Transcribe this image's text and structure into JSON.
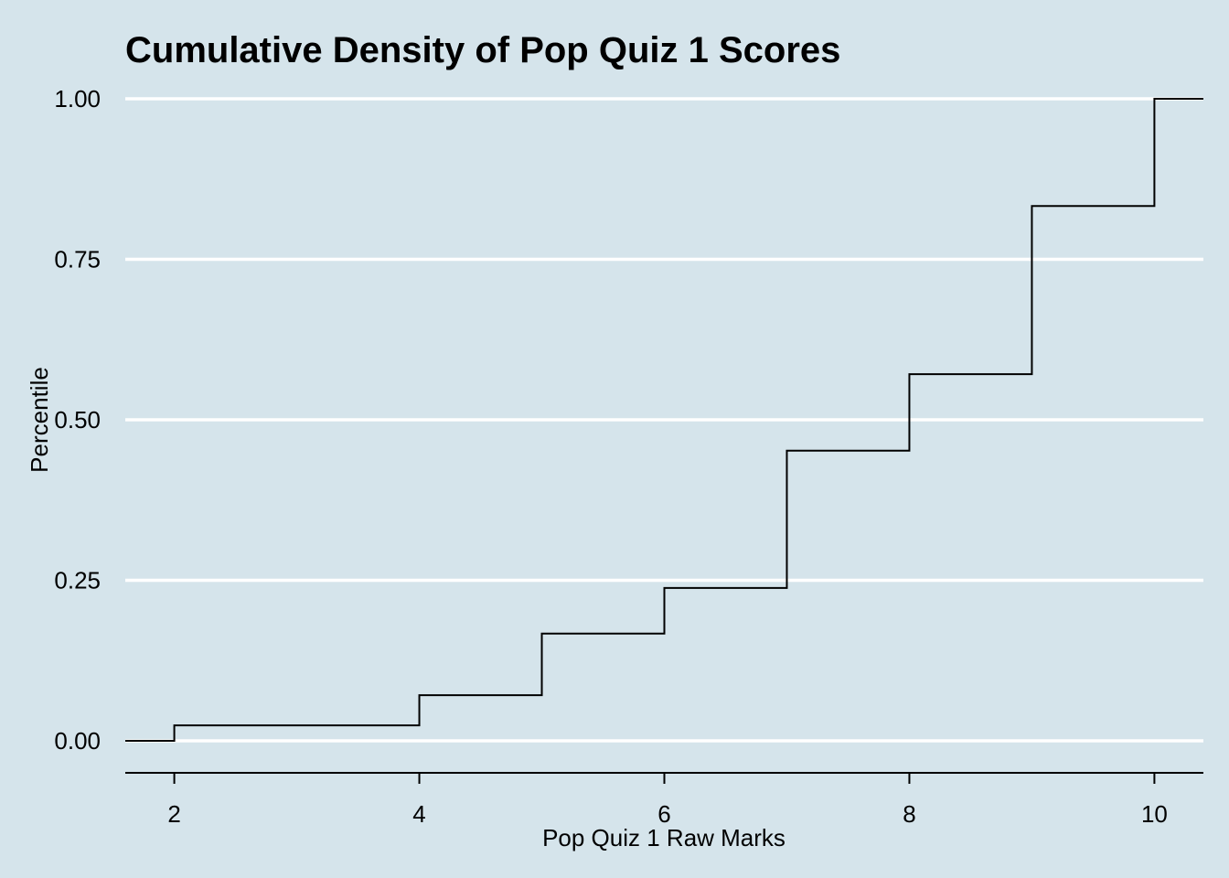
{
  "chart_data": {
    "type": "line",
    "subtype": "ecdf-step",
    "title": "Cumulative Density of Pop Quiz 1 Scores",
    "xlabel": "Pop Quiz 1 Raw Marks",
    "ylabel": "Percentile",
    "xlim": [
      1.6,
      10.4
    ],
    "ylim": [
      -0.05,
      1.0
    ],
    "x_ticks": [
      2,
      4,
      6,
      8,
      10
    ],
    "x_tick_labels": [
      "2",
      "4",
      "6",
      "8",
      "10"
    ],
    "y_ticks": [
      0,
      0.25,
      0.5,
      0.75,
      1.0
    ],
    "y_tick_labels": [
      "0.00",
      "0.25",
      "0.50",
      "0.75",
      "1.00"
    ],
    "grid": "horizontal-major",
    "series": [
      {
        "x": [
          2,
          4,
          5,
          6,
          7,
          8,
          9,
          10
        ],
        "y": [
          0.024,
          0.071,
          0.167,
          0.238,
          0.452,
          0.571,
          0.833,
          1.0
        ]
      }
    ],
    "colors": {
      "background": "#d5e4eb",
      "grid": "#ffffff",
      "line": "#000000",
      "axis": "#000000"
    }
  }
}
